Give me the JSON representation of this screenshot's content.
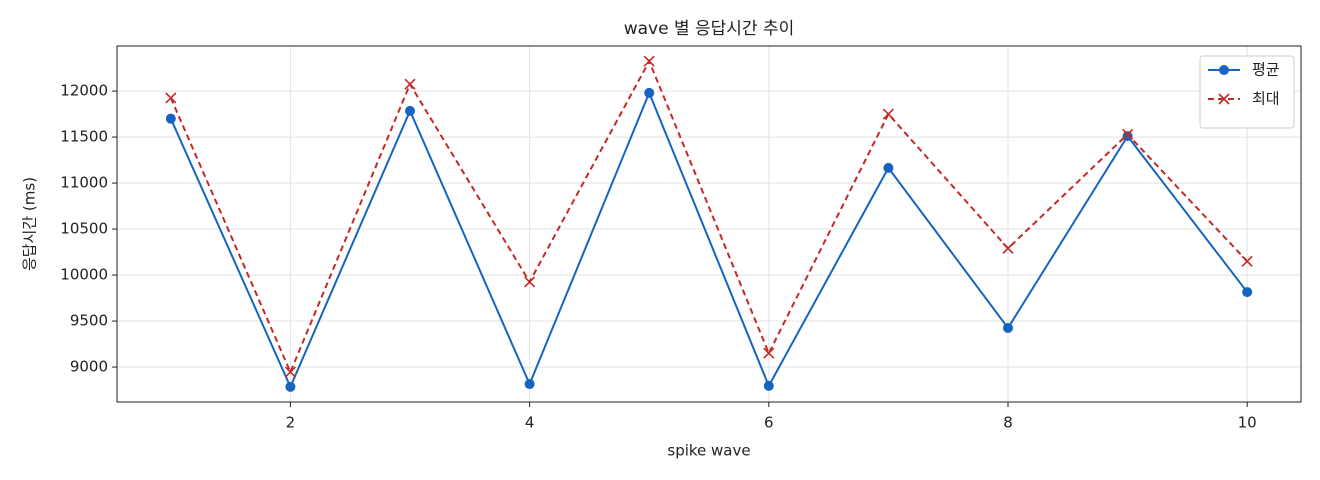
{
  "chart_data": {
    "type": "line",
    "title": "wave 별 응답시간 추이",
    "xlabel": "spike wave",
    "ylabel": "응답시간 (ms)",
    "x": [
      1,
      2,
      3,
      4,
      5,
      6,
      7,
      8,
      9,
      10
    ],
    "series": [
      {
        "name": "평균",
        "color": "#1565c0",
        "linestyle": "solid",
        "marker": "o",
        "values": [
          11700,
          8785,
          11785,
          8815,
          11980,
          8795,
          11165,
          9425,
          11510,
          9815
        ]
      },
      {
        "name": "최대",
        "color": "#c62828",
        "linestyle": "dashed",
        "marker": "x",
        "values": [
          11925,
          8945,
          12075,
          9925,
          12325,
          9150,
          11750,
          10290,
          11530,
          10150
        ]
      }
    ],
    "xlim": [
      0.55,
      10.45
    ],
    "xticks": [
      2,
      4,
      6,
      8,
      10
    ],
    "ylim": [
      8620,
      12490
    ],
    "yticks": [
      9000,
      9500,
      10000,
      10500,
      11000,
      11500,
      12000
    ],
    "grid": true,
    "legend": "upper right"
  }
}
